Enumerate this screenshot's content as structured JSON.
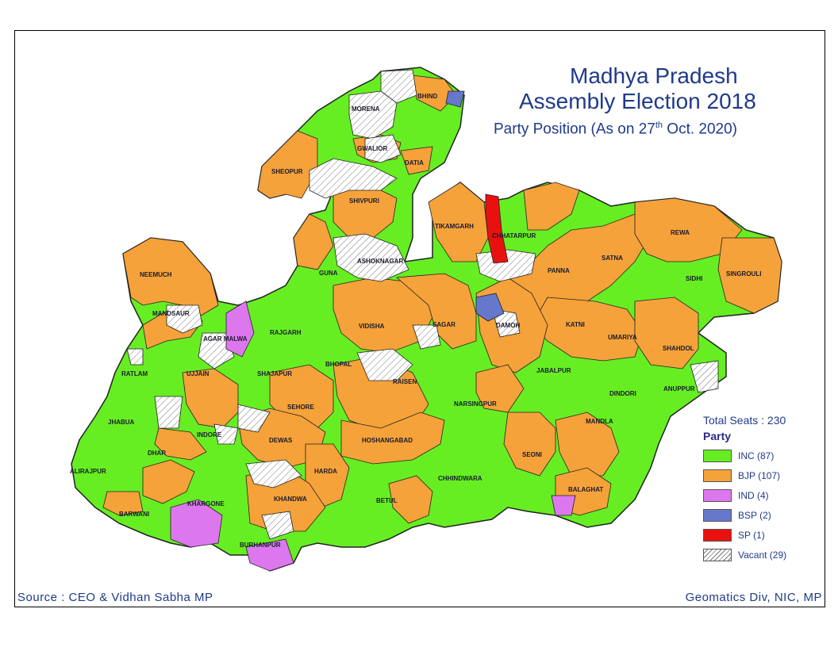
{
  "title_line1": "Madhya Pradesh",
  "title_line2": "Assembly Election 2018",
  "subtitle_prefix": "Party Position (As on 27",
  "subtitle_sup": "th",
  "subtitle_suffix": " Oct. 2020)",
  "legend": {
    "total": "Total Seats : 230",
    "heading": "Party",
    "items": [
      {
        "label": "INC (87)",
        "color": "#66ee22"
      },
      {
        "label": "BJP (107)",
        "color": "#f5a23a"
      },
      {
        "label": "IND (4)",
        "color": "#dd77ee"
      },
      {
        "label": "BSP (2)",
        "color": "#6677cc"
      },
      {
        "label": "SP  (1)",
        "color": "#e8110f"
      },
      {
        "label": "Vacant (29)",
        "color": "hatch"
      }
    ]
  },
  "source": "Source : CEO & Vidhan Sabha MP",
  "credit": "Geomatics Div, NIC, MP",
  "districts": [
    "BHIND",
    "MORENA",
    "GWALIOR",
    "DATIA",
    "SHEOPUR",
    "SHIVPURI",
    "TIKAMGARH",
    "CHHATARPUR",
    "REWA",
    "SATNA",
    "SIDHI",
    "SINGROULI",
    "PANNA",
    "ASHOKNAGAR",
    "GUNA",
    "NEEMUCH",
    "MANDSAUR",
    "RAJGARH",
    "AGAR MALWA",
    "VIDISHA",
    "SAGAR",
    "DAMOH",
    "KATNI",
    "UMARIYA",
    "SHAHDOL",
    "ANUPPUR",
    "RATLAM",
    "UJJAIN",
    "SHAJAPUR",
    "BHOPAL",
    "RAISEN",
    "JABALPUR",
    "DINDORI",
    "JHABUA",
    "INDORE",
    "SEHORE",
    "DEWAS",
    "HOSHANGABAD",
    "NARSINGPUR",
    "MANDLA",
    "DHAR",
    "ALIRAJPUR",
    "BARWANI",
    "KHARGONE",
    "HARDA",
    "BETUL",
    "CHHINDWARA",
    "SEONI",
    "BALAGHAT",
    "KHANDWA",
    "BURHANPUR"
  ]
}
